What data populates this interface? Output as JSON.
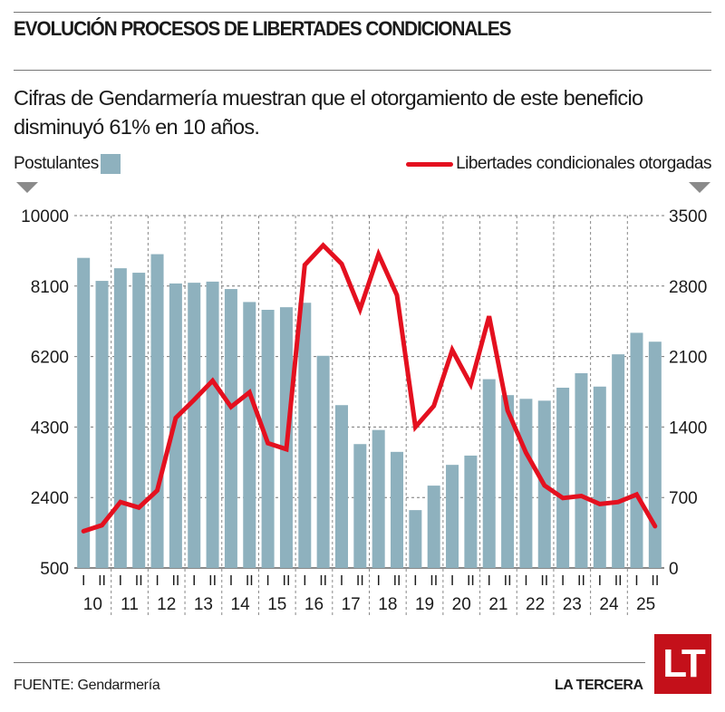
{
  "header": {
    "title": "EVOLUCIÓN PROCESOS DE LIBERTADES CONDICIONALES",
    "subtitle": "Cifras de Gendarmería muestran que el otorgamiento de este beneficio disminuyó 61% en 10 años."
  },
  "legend": {
    "left_label": "Postulantes",
    "right_label": "Libertades condicionales otorgadas"
  },
  "colors": {
    "bars": "#8eb1be",
    "line": "#e4101f",
    "grid": "#777777",
    "logo_bg": "#c4101a"
  },
  "footer": {
    "source": "FUENTE: Gendarmería",
    "brand": "LA TERCERA",
    "logo_text": "LT"
  },
  "chart_data": {
    "type": "bar+line",
    "title": "EVOLUCIÓN PROCESOS DE LIBERTADES CONDICIONALES",
    "xlabel": "",
    "ylabel_left": "Postulantes",
    "ylabel_right": "Libertades condicionales otorgadas",
    "ylim_left": [
      500,
      10000
    ],
    "ylim_right": [
      0,
      3500
    ],
    "yticks_left": [
      500,
      2400,
      4300,
      6200,
      8100,
      10000
    ],
    "yticks_right": [
      0,
      700,
      1400,
      2100,
      2800,
      3500
    ],
    "grid": true,
    "legend_position": "top",
    "years": [
      "10",
      "11",
      "12",
      "13",
      "14",
      "15",
      "16",
      "17",
      "18",
      "19",
      "20",
      "21",
      "22",
      "23",
      "24",
      "25"
    ],
    "semesters": [
      "I",
      "II"
    ],
    "categories": [
      "10-I",
      "10-II",
      "11-I",
      "11-II",
      "12-I",
      "12-II",
      "13-I",
      "13-II",
      "14-I",
      "14-II",
      "15-I",
      "15-II",
      "16-I",
      "16-II",
      "17-I",
      "17-II",
      "18-I",
      "18-II",
      "19-I",
      "19-II",
      "20-I",
      "20-II",
      "21-I",
      "21-II",
      "22-I",
      "22-II",
      "23-I",
      "23-II",
      "24-I",
      "24-II",
      "25-I",
      "25-II"
    ],
    "series": [
      {
        "name": "Postulantes",
        "type": "bar",
        "axis": "left",
        "values": [
          8860,
          8240,
          8580,
          8460,
          8960,
          8170,
          8190,
          8220,
          8020,
          7670,
          7460,
          7530,
          7650,
          6220,
          4890,
          3840,
          4220,
          3630,
          2060,
          2720,
          3280,
          3530,
          5590,
          5160,
          5060,
          5010,
          5360,
          5750,
          5390,
          6260,
          6840,
          6600
        ]
      },
      {
        "name": "Libertades condicionales otorgadas",
        "type": "line",
        "axis": "right",
        "values": [
          365,
          425,
          655,
          600,
          770,
          1490,
          1670,
          1860,
          1600,
          1745,
          1240,
          1180,
          3010,
          3205,
          3020,
          2570,
          3115,
          2710,
          1400,
          1610,
          2165,
          1825,
          2500,
          1565,
          1145,
          820,
          695,
          715,
          635,
          655,
          730,
          415
        ]
      }
    ]
  }
}
